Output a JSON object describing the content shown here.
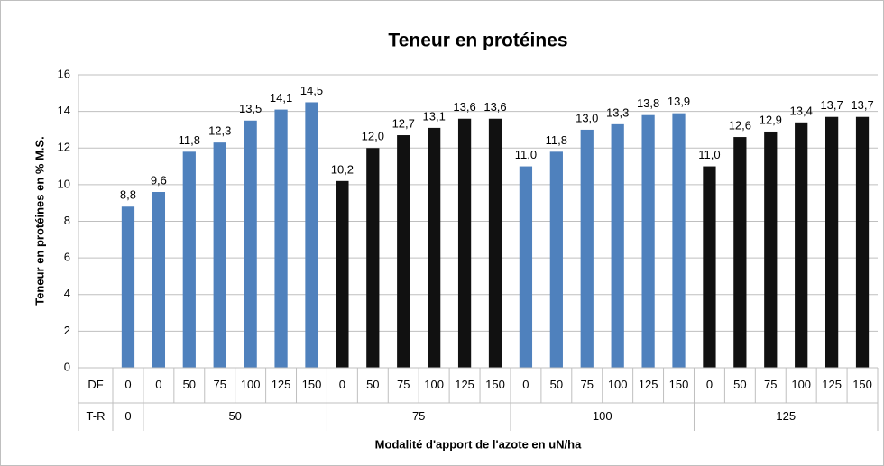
{
  "chart_data": {
    "type": "bar",
    "title": "Teneur en protéines",
    "y_label": "Teneur en protéines en % M.S.",
    "x_label": "Modalité d'apport de l'azote en uN/ha",
    "row_labels": [
      "DF",
      "T-R"
    ],
    "groups": [
      {
        "label": "0",
        "color": "#4f81bd",
        "categories": [
          "0"
        ],
        "values": [
          8.8
        ],
        "value_labels": [
          "8,8"
        ]
      },
      {
        "label": "50",
        "color": "#4f81bd",
        "categories": [
          "0",
          "50",
          "75",
          "100",
          "125",
          "150"
        ],
        "values": [
          9.6,
          11.8,
          12.3,
          13.5,
          14.1,
          14.5
        ],
        "value_labels": [
          "9,6",
          "11,8",
          "12,3",
          "13,5",
          "14,1",
          "14,5"
        ]
      },
      {
        "label": "75",
        "color": "#111111",
        "categories": [
          "0",
          "50",
          "75",
          "100",
          "125",
          "150"
        ],
        "values": [
          10.2,
          12.0,
          12.7,
          13.1,
          13.6,
          13.6
        ],
        "value_labels": [
          "10,2",
          "12,0",
          "12,7",
          "13,1",
          "13,6",
          "13,6"
        ]
      },
      {
        "label": "100",
        "color": "#4f81bd",
        "categories": [
          "0",
          "50",
          "75",
          "100",
          "125",
          "150"
        ],
        "values": [
          11.0,
          11.8,
          13.0,
          13.3,
          13.8,
          13.9
        ],
        "value_labels": [
          "11,0",
          "11,8",
          "13,0",
          "13,3",
          "13,8",
          "13,9"
        ]
      },
      {
        "label": "125",
        "color": "#111111",
        "categories": [
          "0",
          "50",
          "75",
          "100",
          "125",
          "150"
        ],
        "values": [
          11.0,
          12.6,
          12.9,
          13.4,
          13.7,
          13.7
        ],
        "value_labels": [
          "11,0",
          "12,6",
          "12,9",
          "13,4",
          "13,7",
          "13,7"
        ]
      }
    ],
    "ylim": [
      0,
      16
    ],
    "yticks": [
      0,
      2,
      4,
      6,
      8,
      10,
      12,
      14,
      16
    ],
    "grid": true
  }
}
